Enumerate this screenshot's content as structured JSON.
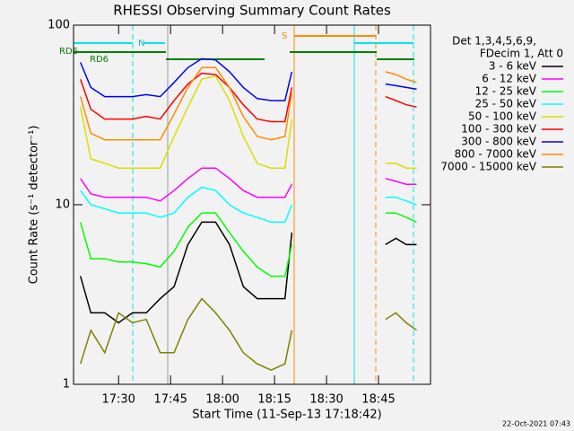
{
  "chart_data": {
    "type": "line",
    "title": "RHESSI Observing Summary Count Rates",
    "xlabel": "Start Time (11-Sep-13 17:18:42)",
    "ylabel": "Count Rate (s⁻¹ detector⁻¹)",
    "legend_title": [
      "Det 1,3,4,5,6,9,",
      "FDecim 1, Att 0"
    ],
    "legend": "right",
    "log_y": true,
    "annotations": [
      "RD6",
      "RD6",
      "N",
      "S"
    ],
    "footer": "22-Oct-2021 07:43",
    "x": [
      1039,
      1042,
      1046,
      1050,
      1054,
      1058,
      1062,
      1066,
      1070,
      1074,
      1078,
      1082,
      1086,
      1090,
      1094,
      1098,
      1100,
      1110,
      1127,
      1130,
      1133,
      1136
    ],
    "xlim": [
      1037,
      1140
    ],
    "xticks": [
      {
        "value": 1050,
        "label": "17:30"
      },
      {
        "value": 1065,
        "label": "17:45"
      },
      {
        "value": 1080,
        "label": "18:00"
      },
      {
        "value": 1095,
        "label": "18:15"
      },
      {
        "value": 1110,
        "label": "18:30"
      },
      {
        "value": 1125,
        "label": "18:45"
      }
    ],
    "ylim": [
      1,
      100
    ],
    "yticks": [
      1,
      10,
      100
    ],
    "series": [
      {
        "name": "3 - 6 keV",
        "color": "#000000",
        "values": [
          4,
          2.5,
          2.5,
          2.2,
          2.5,
          2.5,
          3,
          3.5,
          6,
          8,
          8,
          6,
          3.5,
          3,
          3,
          3,
          7,
          null,
          6,
          6.5,
          6,
          6
        ]
      },
      {
        "name": "6 - 12 keV",
        "color": "#ff00ff",
        "values": [
          14,
          11.5,
          11,
          11,
          11,
          11,
          10.5,
          12,
          14,
          16,
          16,
          14,
          12,
          11,
          11,
          11,
          13,
          null,
          14,
          13.5,
          13,
          13
        ]
      },
      {
        "name": "12 - 25 keV",
        "color": "#00ff00",
        "values": [
          8,
          5,
          5,
          4.8,
          4.8,
          4.7,
          4.5,
          5.5,
          7.5,
          9,
          9,
          7,
          5.5,
          4.5,
          4,
          4,
          6,
          null,
          9,
          9,
          8.5,
          8
        ]
      },
      {
        "name": "25 - 50 keV",
        "color": "#00ffff",
        "values": [
          12,
          10,
          9.5,
          9,
          9,
          9,
          8.5,
          9,
          11,
          12.5,
          12,
          10,
          9,
          8.5,
          8,
          8,
          10,
          null,
          11,
          11,
          10.5,
          10
        ]
      },
      {
        "name": "50 - 100 keV",
        "color": "#dddd00",
        "values": [
          35,
          18,
          17,
          16,
          16,
          16,
          16,
          24,
          35,
          50,
          52,
          38,
          24,
          17,
          16,
          16,
          30,
          null,
          17,
          17,
          16,
          16
        ]
      },
      {
        "name": "100 - 300 keV",
        "color": "#ff0000",
        "values": [
          50,
          34,
          30,
          30,
          30,
          31,
          30,
          38,
          47,
          54,
          53,
          45,
          36,
          30,
          29,
          29,
          45,
          null,
          40,
          38,
          36,
          35
        ]
      },
      {
        "name": "300 - 800 keV",
        "color": "#0000ff",
        "values": [
          62,
          45,
          40,
          40,
          40,
          41,
          40,
          48,
          58,
          65,
          64,
          55,
          45,
          39,
          38,
          38,
          55,
          null,
          47,
          46,
          45,
          44
        ]
      },
      {
        "name": "800 - 7000 keV",
        "color": "#ff8c00",
        "values": [
          40,
          25,
          23,
          23,
          23,
          23,
          23,
          32,
          45,
          58,
          58,
          45,
          31,
          24,
          23,
          24,
          42,
          null,
          55,
          53,
          50,
          48
        ]
      },
      {
        "name": "7000 - 15000 keV",
        "color": "#808000",
        "values": [
          1.3,
          2,
          1.5,
          2.5,
          2.2,
          2.3,
          1.5,
          1.5,
          2.3,
          3,
          2.5,
          2,
          1.5,
          1.3,
          1.2,
          1.3,
          2,
          null,
          2.3,
          2.5,
          2.2,
          2
        ]
      }
    ]
  }
}
